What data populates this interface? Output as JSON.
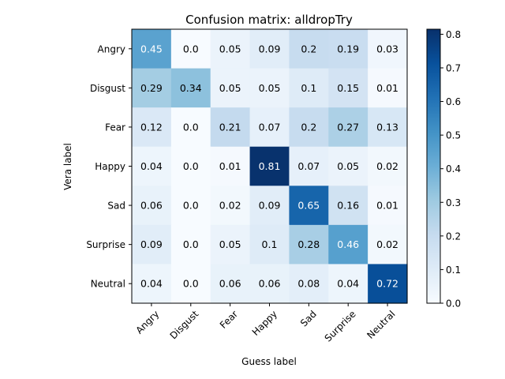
{
  "chart_data": {
    "type": "heatmap",
    "title": "Confusion matrix: alldropTry",
    "xlabel": "Guess label",
    "ylabel": "Vera label",
    "x_categories": [
      "Angry",
      "Disgust",
      "Fear",
      "Happy",
      "Sad",
      "Surprise",
      "Neutral"
    ],
    "y_categories": [
      "Angry",
      "Disgust",
      "Fear",
      "Happy",
      "Sad",
      "Surprise",
      "Neutral"
    ],
    "values": [
      [
        "0.45",
        "0.0",
        "0.05",
        "0.09",
        "0.2",
        "0.19",
        "0.03"
      ],
      [
        "0.29",
        "0.34",
        "0.05",
        "0.05",
        "0.1",
        "0.15",
        "0.01"
      ],
      [
        "0.12",
        "0.0",
        "0.21",
        "0.07",
        "0.2",
        "0.27",
        "0.13"
      ],
      [
        "0.04",
        "0.0",
        "0.01",
        "0.81",
        "0.07",
        "0.05",
        "0.02"
      ],
      [
        "0.06",
        "0.0",
        "0.02",
        "0.09",
        "0.65",
        "0.16",
        "0.01"
      ],
      [
        "0.09",
        "0.0",
        "0.05",
        "0.1",
        "0.28",
        "0.46",
        "0.02"
      ],
      [
        "0.04",
        "0.0",
        "0.06",
        "0.06",
        "0.08",
        "0.04",
        "0.72"
      ]
    ],
    "colormap": "Blues",
    "colorbar": {
      "range": [
        0,
        0.815
      ],
      "ticks": [
        "0.0",
        "0.1",
        "0.2",
        "0.3",
        "0.4",
        "0.5",
        "0.6",
        "0.7",
        "0.8"
      ]
    },
    "grid": false
  }
}
